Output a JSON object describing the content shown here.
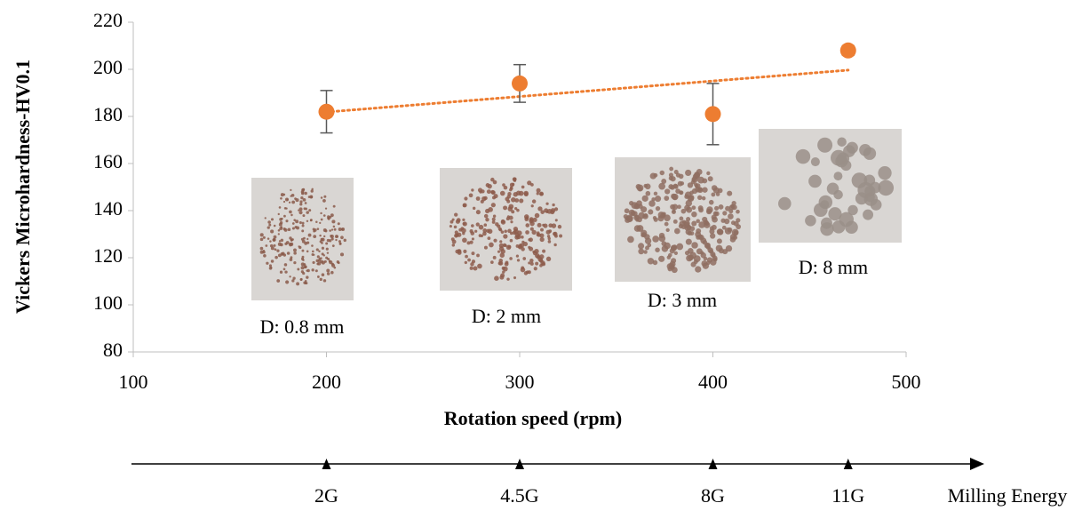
{
  "chart_data": {
    "type": "scatter",
    "ylabel": "Vickers Microhardness-HV0.1",
    "xlabel": "Rotation speed (rpm)",
    "x": [
      200,
      300,
      400,
      470
    ],
    "values": [
      182,
      194,
      181,
      208
    ],
    "errors": [
      9,
      8,
      13,
      2
    ],
    "color": "#ED7D31",
    "trendline": "linear",
    "xlim": [
      100,
      500
    ],
    "xticks": [
      100,
      200,
      300,
      400,
      500
    ],
    "ylim": [
      80,
      220
    ],
    "yticks": [
      80,
      100,
      120,
      140,
      160,
      180,
      200,
      220
    ],
    "ball_labels": [
      "D: 0.8 mm",
      "D: 2 mm",
      "D: 3 mm",
      "D: 8 mm"
    ],
    "energy_label": "Milling Energy",
    "energy_labels": [
      "2G",
      "4.5G",
      "8G",
      "11G"
    ]
  }
}
